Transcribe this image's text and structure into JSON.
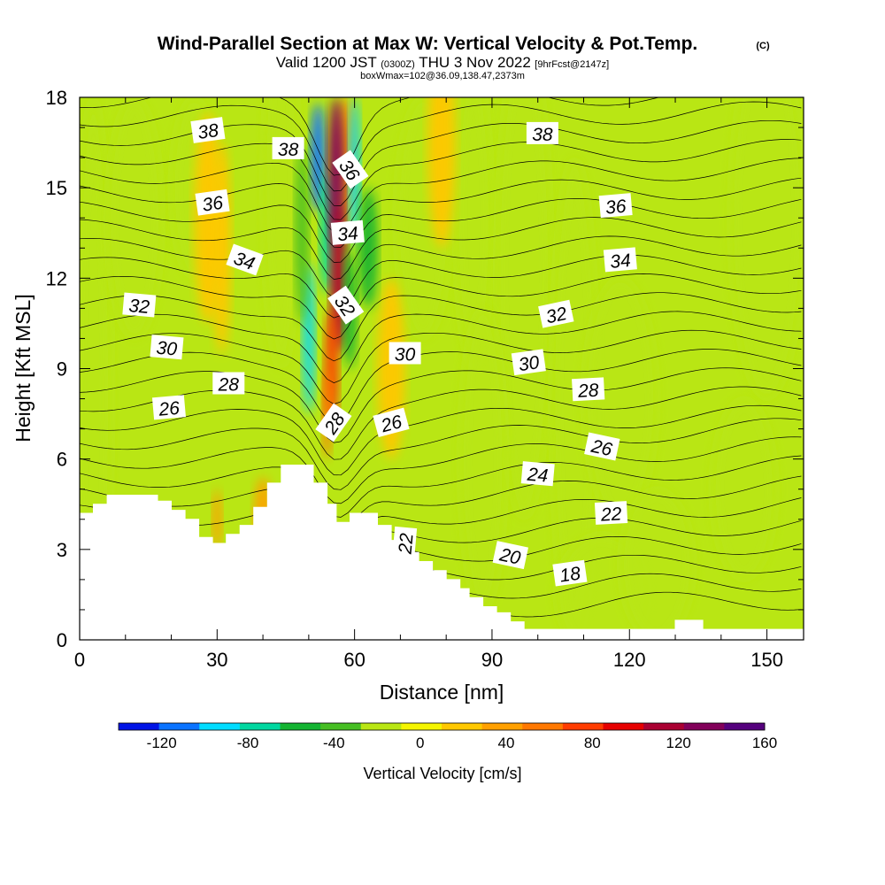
{
  "chart_data": {
    "type": "heatmap",
    "title": "Wind-Parallel Section at Max W: Vertical Velocity & Pot.Temp.",
    "copyright": "(C)",
    "valid_prefix": "Valid 1200 JST",
    "valid_utc": "(0300Z)",
    "valid_date": "THU 3 Nov 2022",
    "forecast_info": "[9hrFcst@2147z]",
    "box_info": "boxWmax=102@36.09,138.47,2373m",
    "xlabel": "Distance [nm]",
    "ylabel": "Height [Kft MSL]",
    "xlim": [
      0,
      158
    ],
    "ylim": [
      0,
      18
    ],
    "x_ticks": [
      "0",
      "30",
      "60",
      "90",
      "120",
      "150"
    ],
    "y_ticks": [
      "0",
      "3",
      "6",
      "9",
      "12",
      "15",
      "18"
    ],
    "colorbar": {
      "label": "Vertical Velocity [cm/s]",
      "range": [
        -140,
        160
      ],
      "step": 20,
      "tick_labels": [
        "-120",
        "-80",
        "-40",
        "0",
        "40",
        "80",
        "120",
        "160"
      ],
      "colors": [
        "#0014e6",
        "#0a73ff",
        "#00dcff",
        "#00d7a0",
        "#14b432",
        "#46be23",
        "#b9e614",
        "#f5f500",
        "#ffc800",
        "#ffa000",
        "#ff7800",
        "#ff3c00",
        "#e60000",
        "#aa0032",
        "#82005a",
        "#55007d"
      ]
    },
    "terrain_kft": [
      [
        0,
        4.2
      ],
      [
        3,
        4.2
      ],
      [
        3,
        4.5
      ],
      [
        6,
        4.5
      ],
      [
        6,
        4.8
      ],
      [
        17,
        4.8
      ],
      [
        17,
        4.6
      ],
      [
        20,
        4.6
      ],
      [
        20,
        4.3
      ],
      [
        23,
        4.3
      ],
      [
        23,
        4.0
      ],
      [
        26,
        4.0
      ],
      [
        26,
        3.4
      ],
      [
        29,
        3.4
      ],
      [
        29,
        3.2
      ],
      [
        32,
        3.2
      ],
      [
        32,
        3.5
      ],
      [
        35,
        3.5
      ],
      [
        35,
        3.8
      ],
      [
        38,
        3.8
      ],
      [
        38,
        4.4
      ],
      [
        41,
        4.4
      ],
      [
        41,
        5.2
      ],
      [
        44,
        5.2
      ],
      [
        44,
        5.8
      ],
      [
        51,
        5.8
      ],
      [
        51,
        5.2
      ],
      [
        54,
        5.2
      ],
      [
        54,
        4.5
      ],
      [
        56,
        4.5
      ],
      [
        56,
        3.9
      ],
      [
        59,
        3.9
      ],
      [
        59,
        4.2
      ],
      [
        65,
        4.2
      ],
      [
        65,
        3.8
      ],
      [
        68,
        3.8
      ],
      [
        68,
        3.3
      ],
      [
        71,
        3.3
      ],
      [
        71,
        2.9
      ],
      [
        74,
        2.9
      ],
      [
        74,
        2.6
      ],
      [
        77,
        2.6
      ],
      [
        77,
        2.3
      ],
      [
        80,
        2.3
      ],
      [
        80,
        2.0
      ],
      [
        83,
        2.0
      ],
      [
        83,
        1.7
      ],
      [
        85,
        1.7
      ],
      [
        85,
        1.4
      ],
      [
        88,
        1.4
      ],
      [
        88,
        1.1
      ],
      [
        91,
        1.1
      ],
      [
        91,
        0.9
      ],
      [
        94,
        0.9
      ],
      [
        94,
        0.6
      ],
      [
        97,
        0.6
      ],
      [
        97,
        0.35
      ],
      [
        130,
        0.35
      ],
      [
        130,
        0.65
      ],
      [
        136,
        0.65
      ],
      [
        136,
        0.35
      ],
      [
        158,
        0.35
      ]
    ],
    "theta_contours": [
      {
        "label": "38",
        "x": 28,
        "y": 16.9,
        "rot": -8
      },
      {
        "label": "38",
        "x": 45.5,
        "y": 16.3,
        "rot": 0
      },
      {
        "label": "36",
        "x": 59,
        "y": 15.6,
        "rot": 55
      },
      {
        "label": "38",
        "x": 101,
        "y": 16.8,
        "rot": 0
      },
      {
        "label": "36",
        "x": 29,
        "y": 14.5,
        "rot": -8
      },
      {
        "label": "36",
        "x": 117,
        "y": 14.4,
        "rot": -5
      },
      {
        "label": "34",
        "x": 36,
        "y": 12.6,
        "rot": 20
      },
      {
        "label": "34",
        "x": 58.5,
        "y": 13.5,
        "rot": -5
      },
      {
        "label": "34",
        "x": 118,
        "y": 12.6,
        "rot": -5
      },
      {
        "label": "32",
        "x": 13,
        "y": 11.1,
        "rot": 5
      },
      {
        "label": "32",
        "x": 58,
        "y": 11.1,
        "rot": 55
      },
      {
        "label": "32",
        "x": 104,
        "y": 10.8,
        "rot": -12
      },
      {
        "label": "30",
        "x": 19,
        "y": 9.7,
        "rot": 5
      },
      {
        "label": "30",
        "x": 71,
        "y": 9.5,
        "rot": 0
      },
      {
        "label": "30",
        "x": 98,
        "y": 9.2,
        "rot": -8
      },
      {
        "label": "28",
        "x": 32.5,
        "y": 8.5,
        "rot": 0
      },
      {
        "label": "28",
        "x": 111,
        "y": 8.3,
        "rot": -3
      },
      {
        "label": "26",
        "x": 19.5,
        "y": 7.7,
        "rot": -5
      },
      {
        "label": "28",
        "x": 55.5,
        "y": 7.2,
        "rot": -55
      },
      {
        "label": "26",
        "x": 68,
        "y": 7.2,
        "rot": -15
      },
      {
        "label": "26",
        "x": 114,
        "y": 6.4,
        "rot": 12
      },
      {
        "label": "24",
        "x": 100,
        "y": 5.5,
        "rot": 5
      },
      {
        "label": "22",
        "x": 116,
        "y": 4.2,
        "rot": -3
      },
      {
        "label": "22",
        "x": 71,
        "y": 3.2,
        "rot": -85
      },
      {
        "label": "20",
        "x": 94,
        "y": 2.8,
        "rot": 12
      },
      {
        "label": "18",
        "x": 107,
        "y": 2.2,
        "rot": -8
      }
    ]
  }
}
